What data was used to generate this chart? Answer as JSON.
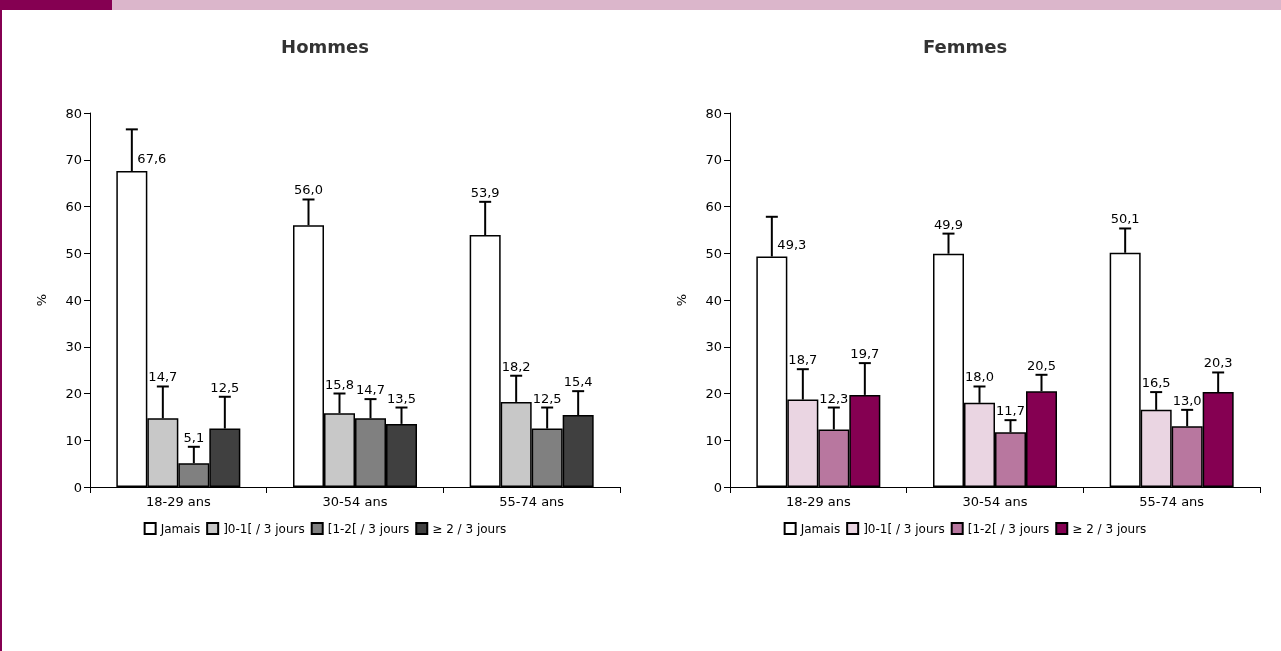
{
  "chart_data": [
    {
      "type": "bar",
      "title": "Hommes",
      "ylabel": "%",
      "categories": [
        "18-29 ans",
        "30-54 ans",
        "55-74 ans"
      ],
      "ylim": [
        0,
        80
      ],
      "yticks": [
        0,
        10,
        20,
        30,
        40,
        50,
        60,
        70,
        80
      ],
      "grid": false,
      "legend": "bottom",
      "series": [
        {
          "name": "Jamais",
          "color": "#ffffff",
          "values": [
            67.6,
            56.0,
            53.9
          ],
          "value_labels": [
            "67,6",
            "56,0",
            "53,9"
          ],
          "errors": [
            [
              67.6,
              76.5
            ],
            [
              56.0,
              61.5
            ],
            [
              53.9,
              61.0
            ]
          ]
        },
        {
          "name": "]0-1[ / 3 jours",
          "color": "#c8c8c8",
          "values": [
            14.7,
            15.8,
            18.2
          ],
          "value_labels": [
            "14,7",
            "15,8",
            "18,2"
          ],
          "errors": [
            [
              14.7,
              21.5
            ],
            [
              15.8,
              20.0
            ],
            [
              18.2,
              23.8
            ]
          ]
        },
        {
          "name": "[1-2[ / 3 jours",
          "color": "#808080",
          "values": [
            5.1,
            14.7,
            12.5
          ],
          "value_labels": [
            "5,1",
            "14,7",
            "12,5"
          ],
          "errors": [
            [
              5.1,
              8.6
            ],
            [
              14.7,
              18.8
            ],
            [
              12.5,
              17.0
            ]
          ]
        },
        {
          "name": "≥ 2 / 3 jours",
          "color": "#404040",
          "values": [
            12.5,
            13.5,
            15.4
          ],
          "value_labels": [
            "12,5",
            "13,5",
            "15,4"
          ],
          "errors": [
            [
              12.5,
              19.3
            ],
            [
              13.5,
              17.0
            ],
            [
              15.4,
              20.5
            ]
          ]
        }
      ]
    },
    {
      "type": "bar",
      "title": "Femmes",
      "ylabel": "%",
      "categories": [
        "18-29 ans",
        "30-54 ans",
        "55-74 ans"
      ],
      "ylim": [
        0,
        80
      ],
      "yticks": [
        0,
        10,
        20,
        30,
        40,
        50,
        60,
        70,
        80
      ],
      "grid": false,
      "legend": "bottom",
      "series": [
        {
          "name": "Jamais",
          "color": "#ffffff",
          "values": [
            49.3,
            49.9,
            50.1
          ],
          "value_labels": [
            "49,3",
            "49,9",
            "50,1"
          ],
          "errors": [
            [
              49.3,
              57.8
            ],
            [
              49.9,
              54.2
            ],
            [
              50.1,
              55.3
            ]
          ]
        },
        {
          "name": "]0-1[ / 3 jours",
          "color": "#ead5e2",
          "values": [
            18.7,
            18.0,
            16.5
          ],
          "value_labels": [
            "18,7",
            "18,0",
            "16,5"
          ],
          "errors": [
            [
              18.7,
              25.2
            ],
            [
              18.0,
              21.5
            ],
            [
              16.5,
              20.3
            ]
          ]
        },
        {
          "name": "[1-2[ / 3 jours",
          "color": "#b8779f",
          "values": [
            12.3,
            11.7,
            13.0
          ],
          "value_labels": [
            "12,3",
            "11,7",
            "13,0"
          ],
          "errors": [
            [
              12.3,
              17.0
            ],
            [
              11.7,
              14.3
            ],
            [
              13.0,
              16.5
            ]
          ]
        },
        {
          "name": "≥ 2 / 3 jours",
          "color": "#850052",
          "values": [
            19.7,
            20.5,
            20.3
          ],
          "value_labels": [
            "19,7",
            "20,5",
            "20,3"
          ],
          "errors": [
            [
              19.7,
              26.5
            ],
            [
              20.5,
              24.0
            ],
            [
              20.3,
              24.5
            ]
          ]
        }
      ]
    }
  ]
}
